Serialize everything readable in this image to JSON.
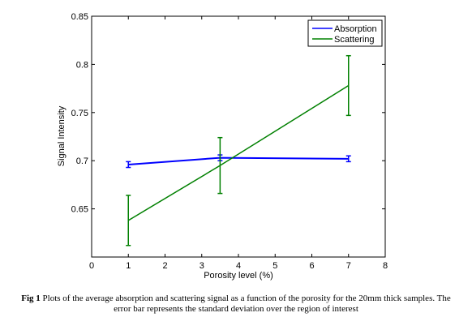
{
  "chart_data": {
    "type": "line",
    "title": "",
    "xlabel": "Porosity level (%)",
    "ylabel": "Signal Intensity",
    "xlim": [
      0,
      8
    ],
    "ylim": [
      0.6,
      0.85
    ],
    "x_ticks": [
      0,
      1,
      2,
      3,
      4,
      5,
      6,
      7,
      8
    ],
    "y_ticks": [
      0.65,
      0.7,
      0.75,
      0.8,
      0.85
    ],
    "y_tick_labels": [
      "0.65",
      "0.7",
      "0.75",
      "0.8",
      "0.85"
    ],
    "grid": false,
    "legend_position": "top-right",
    "series": [
      {
        "name": "Absorption",
        "color": "#0000ff",
        "x": [
          1,
          3.5,
          7
        ],
        "y": [
          0.696,
          0.703,
          0.702
        ],
        "error": [
          0.003,
          0.003,
          0.003
        ]
      },
      {
        "name": "Scattering",
        "color": "#008000",
        "x": [
          1,
          3.5,
          7
        ],
        "y": [
          0.638,
          0.695,
          0.778
        ],
        "error": [
          0.026,
          0.029,
          0.031
        ]
      }
    ]
  },
  "caption": {
    "label": "Fig 1",
    "text": "Plots of the average absorption and scattering signal as a function of the porosity for the 20mm thick samples. The error bar represents the standard deviation over the region of interest"
  }
}
